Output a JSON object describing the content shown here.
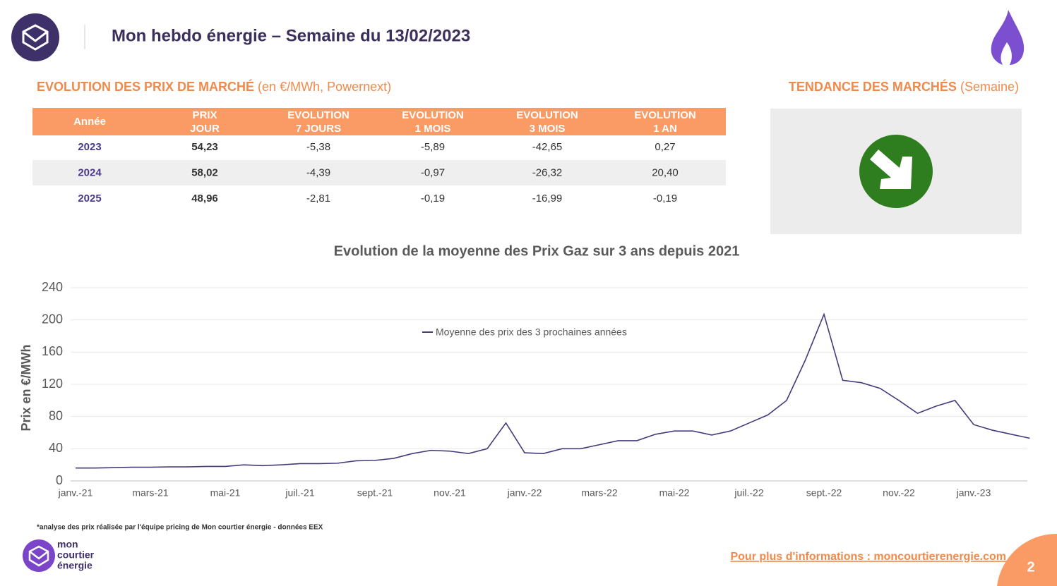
{
  "header": {
    "title": "Mon hebdo énergie – Semaine du 13/02/2023"
  },
  "prices": {
    "title": "EVOLUTION DES PRIX DE MARCHÉ",
    "subtitle": "(en €/MWh, Powernext)",
    "table": {
      "header": [
        [
          "Année"
        ],
        [
          "PRIX",
          "JOUR"
        ],
        [
          "EVOLUTION",
          "7 JOURS"
        ],
        [
          "EVOLUTION",
          "1 MOIS"
        ],
        [
          "EVOLUTION",
          "3 MOIS"
        ],
        [
          "EVOLUTION",
          "1 AN"
        ]
      ],
      "rows": [
        [
          "2023",
          "54,23",
          "-5,38",
          "-5,89",
          "-42,65",
          "0,27"
        ],
        [
          "2024",
          "58,02",
          "-4,39",
          "-0,97",
          "-26,32",
          "20,40"
        ],
        [
          "2025",
          "48,96",
          "-2,81",
          "-0,19",
          "-16,99",
          "-0,19"
        ]
      ]
    }
  },
  "trend": {
    "title": "TENDANCE DES MARCHÉS",
    "subtitle": "(Semaine)"
  },
  "chart_data": {
    "type": "line",
    "title": "Evolution de la moyenne des Prix Gaz sur 3 ans depuis 2021",
    "y_label": "Prix en €/MWh",
    "categories": [
      "janv.-21",
      null,
      null,
      null,
      "mars-21",
      null,
      null,
      null,
      "mai-21",
      null,
      null,
      null,
      "juil.-21",
      null,
      null,
      null,
      "sept.-21",
      null,
      null,
      null,
      "nov.-21",
      null,
      null,
      null,
      "janv.-22",
      null,
      null,
      null,
      "mars-22",
      null,
      null,
      null,
      "mai-22",
      null,
      null,
      null,
      "juil.-22",
      null,
      null,
      null,
      "sept.-22",
      null,
      null,
      null,
      "nov.-22",
      null,
      null,
      null,
      "janv.-23",
      null,
      null,
      null
    ],
    "series": [
      {
        "name": "Moyenne des prix des 3 prochaines années",
        "color": "#453a7c",
        "values": [
          16,
          16,
          16.5,
          17,
          17,
          17.5,
          17.5,
          18,
          18,
          20,
          19,
          20,
          21.5,
          21.5,
          22,
          25,
          25.5,
          28,
          34,
          38,
          37,
          34,
          40,
          72,
          35,
          34,
          40,
          40,
          45,
          50,
          50,
          58,
          62,
          62,
          57,
          62,
          72,
          82,
          100,
          150,
          207,
          125,
          122,
          115,
          100,
          84,
          93,
          100,
          70,
          63,
          58,
          53
        ]
      }
    ],
    "ylim": [
      0,
      240
    ],
    "yticks": [
      0,
      40,
      80,
      120,
      160,
      200,
      240
    ],
    "grid": true
  },
  "footnote": "*analyse des prix réalisée par l'équipe pricing de Mon courtier énergie -  données EEX",
  "logo": {
    "lines": [
      "mon",
      "courtier",
      "énergie"
    ]
  },
  "link": "Pour plus d'informations : moncourtierenergie.com",
  "page_number": "2"
}
